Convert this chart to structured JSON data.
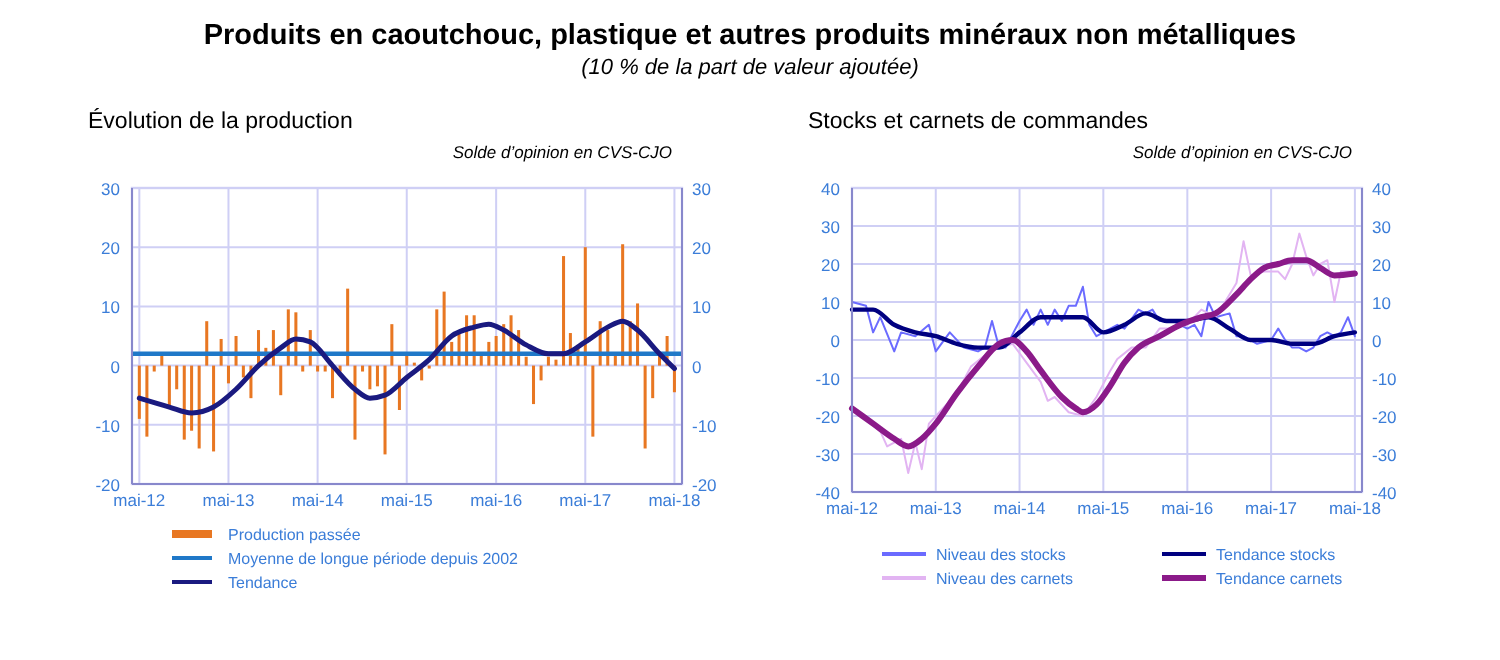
{
  "chart_data": [
    {
      "type": "other",
      "title": "Produits en caoutchouc, plastique et autres produits minéraux non métalliques",
      "subtitle": "(10 % de la part de valeur ajoutée)"
    },
    {
      "type": "bar",
      "title": "Évolution de la production",
      "subtitle": "Solde d’opinion en CVS-CJO",
      "x": [
        "2012-05",
        "2012-06",
        "2012-07",
        "2012-08",
        "2012-09",
        "2012-10",
        "2012-11",
        "2012-12",
        "2013-01",
        "2013-02",
        "2013-03",
        "2013-04",
        "2013-05",
        "2013-06",
        "2013-07",
        "2013-08",
        "2013-09",
        "2013-10",
        "2013-11",
        "2013-12",
        "2014-01",
        "2014-02",
        "2014-03",
        "2014-04",
        "2014-05",
        "2014-06",
        "2014-07",
        "2014-08",
        "2014-09",
        "2014-10",
        "2014-11",
        "2014-12",
        "2015-01",
        "2015-02",
        "2015-03",
        "2015-04",
        "2015-05",
        "2015-06",
        "2015-07",
        "2015-08",
        "2015-09",
        "2015-10",
        "2015-11",
        "2015-12",
        "2016-01",
        "2016-02",
        "2016-03",
        "2016-04",
        "2016-05",
        "2016-06",
        "2016-07",
        "2016-08",
        "2016-09",
        "2016-10",
        "2016-11",
        "2016-12",
        "2017-01",
        "2017-02",
        "2017-03",
        "2017-04",
        "2017-05",
        "2017-06",
        "2017-07",
        "2017-08",
        "2017-09",
        "2017-10",
        "2017-11",
        "2017-12",
        "2018-01",
        "2018-02",
        "2018-03",
        "2018-04",
        "2018-05"
      ],
      "series": [
        {
          "name": "Production passée",
          "type": "bar",
          "color": "#e87722",
          "values": [
            -9,
            -12,
            -1,
            2,
            -7,
            -4,
            -12.5,
            -11,
            -14,
            7.5,
            -14.5,
            4.5,
            -3,
            5,
            -2,
            -5.5,
            6,
            3,
            6,
            -5,
            9.5,
            9,
            -1,
            6,
            -1,
            -1,
            -5.5,
            -1,
            13,
            -12.5,
            -1,
            -4,
            -3.5,
            -15,
            7,
            -7.5,
            2,
            0.5,
            -2.5,
            -0.5,
            9.5,
            12.5,
            4,
            6,
            8.5,
            8.5,
            2,
            4,
            5,
            7,
            8.5,
            6,
            1.5,
            -6.5,
            -2.5,
            1.5,
            1,
            18.5,
            5.5,
            3.5,
            20,
            -12,
            7.5,
            6,
            2,
            20.5,
            7.5,
            10.5,
            -14,
            -5.5,
            2,
            5,
            -4.5
          ]
        },
        {
          "name": "Tendance",
          "type": "line",
          "color": "#1a1a80",
          "x": [
            "2012-05",
            "2012-09",
            "2012-12",
            "2013-03",
            "2013-06",
            "2013-09",
            "2013-12",
            "2014-02",
            "2014-04",
            "2014-07",
            "2014-10",
            "2014-12",
            "2015-02",
            "2015-05",
            "2015-08",
            "2015-11",
            "2016-02",
            "2016-04",
            "2016-06",
            "2016-09",
            "2016-12",
            "2017-02",
            "2017-05",
            "2017-08",
            "2017-10",
            "2017-12",
            "2018-03",
            "2018-05"
          ],
          "values": [
            -5.5,
            -7,
            -8,
            -7,
            -4,
            0,
            3,
            4.5,
            4,
            0,
            -4,
            -5.5,
            -5,
            -2,
            1,
            5,
            6.5,
            7,
            6,
            3.5,
            2,
            2,
            4,
            6.5,
            7.5,
            6,
            2,
            -0.5
          ]
        }
      ],
      "ref_lines": [
        {
          "axis": "y",
          "value": 2,
          "label": "Moyenne de longue période depuis 2002",
          "color": "#1f78c8"
        }
      ],
      "xlim": [
        "2012-04",
        "2018-06"
      ],
      "xticks": [
        {
          "value": "2012-05",
          "label": "mai-12"
        },
        {
          "value": "2013-05",
          "label": "mai-13"
        },
        {
          "value": "2014-05",
          "label": "mai-14"
        },
        {
          "value": "2015-05",
          "label": "mai-15"
        },
        {
          "value": "2016-05",
          "label": "mai-16"
        },
        {
          "value": "2017-05",
          "label": "mai-17"
        },
        {
          "value": "2018-05",
          "label": "mai-18"
        }
      ],
      "ylim": [
        -20,
        30
      ],
      "yticks": [
        -20,
        -10,
        0,
        10,
        20,
        30
      ],
      "y2lim": [
        -20,
        30
      ],
      "y2ticks": [
        -20,
        -10,
        0,
        10,
        20,
        30
      ],
      "grid": true,
      "legend": "bottom"
    },
    {
      "type": "line",
      "title": "Stocks et carnets de commandes",
      "subtitle": "Solde d’opinion en CVS-CJO",
      "series": [
        {
          "name": "Niveau des stocks",
          "color": "#6b6bff",
          "x": [
            "2012-05",
            "2012-07",
            "2012-08",
            "2012-09",
            "2012-11",
            "2012-12",
            "2013-02",
            "2013-04",
            "2013-05",
            "2013-07",
            "2013-09",
            "2013-11",
            "2013-12",
            "2014-01",
            "2014-02",
            "2014-03",
            "2014-05",
            "2014-06",
            "2014-07",
            "2014-08",
            "2014-09",
            "2014-10",
            "2014-11",
            "2014-12",
            "2015-01",
            "2015-02",
            "2015-03",
            "2015-04",
            "2015-05",
            "2015-07",
            "2015-08",
            "2015-10",
            "2015-11",
            "2015-12",
            "2016-01",
            "2016-03",
            "2016-05",
            "2016-06",
            "2016-07",
            "2016-08",
            "2016-09",
            "2016-11",
            "2016-12",
            "2017-01",
            "2017-03",
            "2017-05",
            "2017-06",
            "2017-07",
            "2017-08",
            "2017-09",
            "2017-10",
            "2017-11",
            "2017-12",
            "2018-01",
            "2018-02",
            "2018-03",
            "2018-04",
            "2018-05"
          ],
          "values": [
            10,
            9,
            2,
            6,
            -3,
            2,
            1,
            4,
            -3,
            2,
            -2,
            -3,
            -2,
            5,
            -2,
            -2,
            5,
            8,
            4,
            8,
            4,
            8,
            5,
            9,
            9,
            14,
            4,
            1,
            2,
            4,
            3,
            8,
            7,
            8,
            5,
            5,
            3,
            4,
            1,
            10,
            6,
            7,
            1,
            1,
            -1,
            0,
            3,
            0,
            -2,
            -2,
            -3,
            -2,
            1,
            2,
            1,
            2,
            6,
            1
          ]
        },
        {
          "name": "Niveau des carnets",
          "color": "#e2b4f2",
          "x": [
            "2012-05",
            "2012-07",
            "2012-09",
            "2012-10",
            "2012-12",
            "2013-01",
            "2013-02",
            "2013-03",
            "2013-04",
            "2013-06",
            "2013-08",
            "2013-10",
            "2013-12",
            "2014-02",
            "2014-04",
            "2014-06",
            "2014-08",
            "2014-09",
            "2014-10",
            "2014-12",
            "2015-02",
            "2015-04",
            "2015-06",
            "2015-07",
            "2015-09",
            "2015-11",
            "2016-01",
            "2016-03",
            "2016-05",
            "2016-07",
            "2016-09",
            "2016-11",
            "2016-12",
            "2017-01",
            "2017-02",
            "2017-04",
            "2017-06",
            "2017-07",
            "2017-08",
            "2017-09",
            "2017-10",
            "2017-11",
            "2017-12",
            "2018-01",
            "2018-02",
            "2018-03",
            "2018-05"
          ],
          "values": [
            -18,
            -21,
            -24,
            -28,
            -26,
            -35,
            -27,
            -34,
            -22,
            -18,
            -14,
            -7,
            -4,
            -2,
            -1,
            -6,
            -11,
            -16,
            -15,
            -19,
            -20,
            -15,
            -8,
            -5,
            -2,
            -2,
            3,
            3,
            4,
            8,
            6,
            12,
            15,
            26,
            17,
            18,
            18,
            16,
            20,
            28,
            22,
            17,
            20,
            21,
            10,
            18,
            18
          ]
        },
        {
          "name": "Tendance stocks",
          "color": "#000080",
          "x": [
            "2012-05",
            "2012-08",
            "2012-11",
            "2013-02",
            "2013-05",
            "2013-08",
            "2013-11",
            "2014-02",
            "2014-05",
            "2014-08",
            "2014-11",
            "2015-02",
            "2015-05",
            "2015-08",
            "2015-11",
            "2016-02",
            "2016-05",
            "2016-08",
            "2016-11",
            "2017-02",
            "2017-05",
            "2017-08",
            "2017-11",
            "2018-02",
            "2018-05"
          ],
          "values": [
            8,
            8,
            4,
            2,
            1,
            -1,
            -2,
            -2,
            2,
            6,
            6,
            6,
            2,
            4,
            7,
            5,
            5,
            6,
            3,
            0,
            0,
            -1,
            -1,
            1,
            2
          ]
        },
        {
          "name": "Tendance carnets",
          "color": "#8b1a89",
          "x": [
            "2012-05",
            "2012-08",
            "2012-11",
            "2013-01",
            "2013-03",
            "2013-05",
            "2013-08",
            "2013-11",
            "2014-02",
            "2014-04",
            "2014-06",
            "2014-08",
            "2014-11",
            "2015-01",
            "2015-02",
            "2015-04",
            "2015-06",
            "2015-08",
            "2015-10",
            "2016-01",
            "2016-04",
            "2016-07",
            "2016-09",
            "2016-12",
            "2017-02",
            "2017-04",
            "2017-06",
            "2017-08",
            "2017-10",
            "2017-12",
            "2018-02",
            "2018-05"
          ],
          "values": [
            -18,
            -22,
            -26,
            -28,
            -26,
            -22,
            -14,
            -7,
            -1,
            0,
            -3,
            -8,
            -15,
            -18,
            -19,
            -17,
            -12,
            -6,
            -2,
            1,
            4,
            6,
            7,
            12,
            16,
            19,
            20,
            21,
            21,
            19,
            17,
            17.5
          ]
        }
      ],
      "xlim": [
        "2012-05",
        "2018-06"
      ],
      "xticks": [
        {
          "value": "2012-05",
          "label": "mai-12"
        },
        {
          "value": "2013-05",
          "label": "mai-13"
        },
        {
          "value": "2014-05",
          "label": "mai-14"
        },
        {
          "value": "2015-05",
          "label": "mai-15"
        },
        {
          "value": "2016-05",
          "label": "mai-16"
        },
        {
          "value": "2017-05",
          "label": "mai-17"
        },
        {
          "value": "2018-05",
          "label": "mai-18"
        }
      ],
      "ylim": [
        -40,
        40
      ],
      "yticks": [
        -40,
        -30,
        -20,
        -10,
        0,
        10,
        20,
        30,
        40
      ],
      "y2lim": [
        -40,
        40
      ],
      "y2ticks": [
        -40,
        -30,
        -20,
        -10,
        0,
        10,
        20,
        30,
        40
      ],
      "grid": true,
      "legend": "bottom"
    }
  ]
}
